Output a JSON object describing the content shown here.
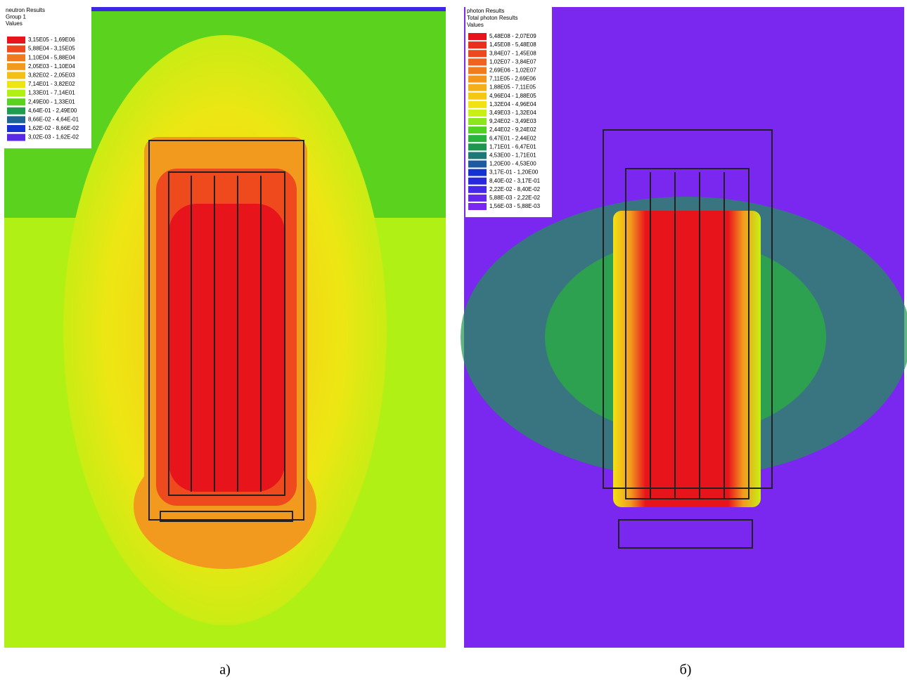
{
  "panels": [
    {
      "header": [
        "neutron Results",
        "Group 1",
        "Values"
      ],
      "legend": [
        {
          "label": "3,15E05 - 1,69E06",
          "color": "#e8141c"
        },
        {
          "label": "5,88E04 - 3,15E05",
          "color": "#ee4a1e"
        },
        {
          "label": "1,10E04 - 5,88E04",
          "color": "#f07a1e"
        },
        {
          "label": "2,05E03 - 1,10E04",
          "color": "#f29a1e"
        },
        {
          "label": "3,82E02 - 2,05E03",
          "color": "#f5c014"
        },
        {
          "label": "7,14E01 - 3,82E02",
          "color": "#eee614"
        },
        {
          "label": "1,33E01 - 7,14E01",
          "color": "#b0f014"
        },
        {
          "label": "2,49E00 - 1,33E01",
          "color": "#5ad21e"
        },
        {
          "label": "4,64E-01 - 2,49E00",
          "color": "#1e9c50"
        },
        {
          "label": "8,66E-02 - 4,64E-01",
          "color": "#1e6496"
        },
        {
          "label": "1,62E-02 - 8,66E-02",
          "color": "#1432d2"
        },
        {
          "label": "3,02E-03 - 1,62E-02",
          "color": "#5a28e8"
        }
      ],
      "caption": "а)"
    },
    {
      "header": [
        "photon Results",
        "Total photon Results",
        "Values"
      ],
      "legend": [
        {
          "label": "5,48E08 - 2,07E09",
          "color": "#e8141c"
        },
        {
          "label": "1,45E08 - 5,48E08",
          "color": "#ea2e1c"
        },
        {
          "label": "3,84E07 - 1,45E08",
          "color": "#ec4a1e"
        },
        {
          "label": "1,02E07 - 3,84E07",
          "color": "#ee641e"
        },
        {
          "label": "2,69E06 - 1,02E07",
          "color": "#f07c1e"
        },
        {
          "label": "7,11E05 - 2,69E06",
          "color": "#f2961e"
        },
        {
          "label": "1,88E05 - 7,11E05",
          "color": "#f4b01a"
        },
        {
          "label": "4,96E04 - 1,88E05",
          "color": "#f5c814"
        },
        {
          "label": "1,32E04 - 4,96E04",
          "color": "#f2e214"
        },
        {
          "label": "3,49E03 - 1,32E04",
          "color": "#c8f014"
        },
        {
          "label": "9,24E02 - 3,49E03",
          "color": "#8ce61e"
        },
        {
          "label": "2,44E02 - 9,24E02",
          "color": "#50d21e"
        },
        {
          "label": "6,47E01 - 2,44E02",
          "color": "#28b43c"
        },
        {
          "label": "1,71E01 - 6,47E01",
          "color": "#1e9650"
        },
        {
          "label": "4,53E00 - 1,71E01",
          "color": "#1e7878"
        },
        {
          "label": "1,20E00 - 4,53E00",
          "color": "#1e5aa0"
        },
        {
          "label": "3,17E-01 - 1,20E00",
          "color": "#1432d2"
        },
        {
          "label": "8,40E-02 - 3,17E-01",
          "color": "#2828e0"
        },
        {
          "label": "2,22E-02 - 8,40E-02",
          "color": "#4628e8"
        },
        {
          "label": "5,88E-03 - 2,22E-02",
          "color": "#6428ec"
        },
        {
          "label": "1,56E-03 - 5,88E-03",
          "color": "#7a28f0"
        }
      ],
      "caption": "б)"
    }
  ]
}
